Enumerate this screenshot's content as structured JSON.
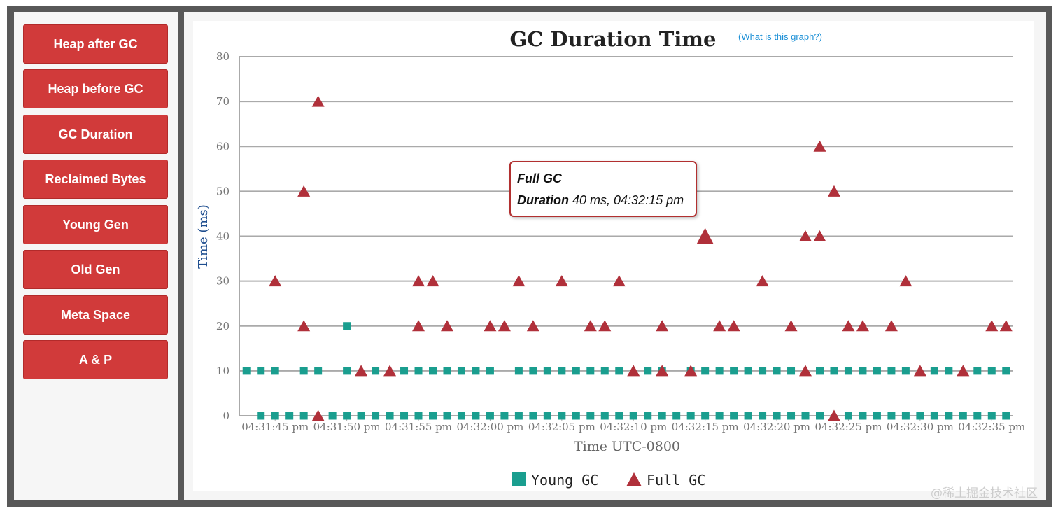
{
  "sidebar": {
    "buttons": [
      {
        "label": "Heap after GC"
      },
      {
        "label": "Heap before GC"
      },
      {
        "label": "GC Duration"
      },
      {
        "label": "Reclaimed Bytes"
      },
      {
        "label": "Young Gen"
      },
      {
        "label": "Old Gen"
      },
      {
        "label": "Meta Space"
      },
      {
        "label": "A & P"
      }
    ]
  },
  "help_link": "(What is this graph?)",
  "watermark": "@稀土掘金技术社区",
  "tooltip": {
    "title": "Full GC",
    "label": "Duration",
    "value": " 40 ms, 04:32:15 pm"
  },
  "colors": {
    "young_gc": "#1a9e8f",
    "full_gc": "#b0303a",
    "button": "#d13a3a"
  },
  "chart_data": {
    "type": "scatter",
    "title": "GC Duration Time",
    "xlabel": "Time UTC-0800",
    "ylabel": "Time (ms)",
    "ylim": [
      0,
      80
    ],
    "yticks": [
      0,
      10,
      20,
      30,
      40,
      50,
      60,
      70,
      80
    ],
    "xlim": [
      "04:31:42.5 pm",
      "04:32:36.5 pm"
    ],
    "xtick_labels": [
      "04:31:45 pm",
      "04:31:50 pm",
      "04:31:55 pm",
      "04:32:00 pm",
      "04:32:05 pm",
      "04:32:10 pm",
      "04:32:15 pm",
      "04:32:20 pm",
      "04:32:25 pm",
      "04:32:30 pm",
      "04:32:35 pm"
    ],
    "grid": true,
    "legend": "bottom",
    "highlighted_point": {
      "series": "Full GC",
      "x": "04:32:15 pm",
      "y": 40
    },
    "series": [
      {
        "name": "Young GC",
        "marker": "square",
        "points": [
          [
            "04:31:43 pm",
            10
          ],
          [
            "04:31:44 pm",
            10
          ],
          [
            "04:31:45 pm",
            10
          ],
          [
            "04:31:47 pm",
            10
          ],
          [
            "04:31:48 pm",
            10
          ],
          [
            "04:31:50 pm",
            20
          ],
          [
            "04:31:50 pm",
            10
          ],
          [
            "04:31:52 pm",
            10
          ],
          [
            "04:31:54 pm",
            10
          ],
          [
            "04:31:55 pm",
            10
          ],
          [
            "04:31:56 pm",
            10
          ],
          [
            "04:31:57 pm",
            10
          ],
          [
            "04:31:58 pm",
            10
          ],
          [
            "04:31:59 pm",
            10
          ],
          [
            "04:32:00 pm",
            10
          ],
          [
            "04:32:02 pm",
            10
          ],
          [
            "04:32:03 pm",
            10
          ],
          [
            "04:32:04 pm",
            10
          ],
          [
            "04:32:05 pm",
            10
          ],
          [
            "04:32:06 pm",
            10
          ],
          [
            "04:32:07 pm",
            10
          ],
          [
            "04:32:08 pm",
            10
          ],
          [
            "04:32:09 pm",
            10
          ],
          [
            "04:32:11 pm",
            10
          ],
          [
            "04:32:12 pm",
            10
          ],
          [
            "04:32:14 pm",
            10
          ],
          [
            "04:32:15 pm",
            10
          ],
          [
            "04:32:16 pm",
            10
          ],
          [
            "04:32:17 pm",
            10
          ],
          [
            "04:32:18 pm",
            10
          ],
          [
            "04:32:19 pm",
            10
          ],
          [
            "04:32:20 pm",
            10
          ],
          [
            "04:32:21 pm",
            10
          ],
          [
            "04:32:23 pm",
            10
          ],
          [
            "04:32:24 pm",
            10
          ],
          [
            "04:32:25 pm",
            10
          ],
          [
            "04:32:26 pm",
            10
          ],
          [
            "04:32:27 pm",
            10
          ],
          [
            "04:32:28 pm",
            10
          ],
          [
            "04:32:29 pm",
            10
          ],
          [
            "04:32:31 pm",
            10
          ],
          [
            "04:32:32 pm",
            10
          ],
          [
            "04:32:34 pm",
            10
          ],
          [
            "04:32:35 pm",
            10
          ],
          [
            "04:32:36 pm",
            10
          ],
          [
            "04:31:44 pm",
            0
          ],
          [
            "04:31:45 pm",
            0
          ],
          [
            "04:31:46 pm",
            0
          ],
          [
            "04:31:47 pm",
            0
          ],
          [
            "04:31:49 pm",
            0
          ],
          [
            "04:31:50 pm",
            0
          ],
          [
            "04:31:51 pm",
            0
          ],
          [
            "04:31:52 pm",
            0
          ],
          [
            "04:31:53 pm",
            0
          ],
          [
            "04:31:54 pm",
            0
          ],
          [
            "04:31:55 pm",
            0
          ],
          [
            "04:31:56 pm",
            0
          ],
          [
            "04:31:57 pm",
            0
          ],
          [
            "04:31:58 pm",
            0
          ],
          [
            "04:31:59 pm",
            0
          ],
          [
            "04:32:00 pm",
            0
          ],
          [
            "04:32:01 pm",
            0
          ],
          [
            "04:32:02 pm",
            0
          ],
          [
            "04:32:03 pm",
            0
          ],
          [
            "04:32:04 pm",
            0
          ],
          [
            "04:32:05 pm",
            0
          ],
          [
            "04:32:06 pm",
            0
          ],
          [
            "04:32:07 pm",
            0
          ],
          [
            "04:32:08 pm",
            0
          ],
          [
            "04:32:09 pm",
            0
          ],
          [
            "04:32:10 pm",
            0
          ],
          [
            "04:32:11 pm",
            0
          ],
          [
            "04:32:12 pm",
            0
          ],
          [
            "04:32:13 pm",
            0
          ],
          [
            "04:32:14 pm",
            0
          ],
          [
            "04:32:15 pm",
            0
          ],
          [
            "04:32:16 pm",
            0
          ],
          [
            "04:32:17 pm",
            0
          ],
          [
            "04:32:18 pm",
            0
          ],
          [
            "04:32:19 pm",
            0
          ],
          [
            "04:32:20 pm",
            0
          ],
          [
            "04:32:21 pm",
            0
          ],
          [
            "04:32:22 pm",
            0
          ],
          [
            "04:32:23 pm",
            0
          ],
          [
            "04:32:25 pm",
            0
          ],
          [
            "04:32:26 pm",
            0
          ],
          [
            "04:32:27 pm",
            0
          ],
          [
            "04:32:28 pm",
            0
          ],
          [
            "04:32:29 pm",
            0
          ],
          [
            "04:32:30 pm",
            0
          ],
          [
            "04:32:31 pm",
            0
          ],
          [
            "04:32:32 pm",
            0
          ],
          [
            "04:32:33 pm",
            0
          ],
          [
            "04:32:34 pm",
            0
          ],
          [
            "04:32:35 pm",
            0
          ],
          [
            "04:32:36 pm",
            0
          ]
        ]
      },
      {
        "name": "Full GC",
        "marker": "triangle",
        "points": [
          [
            "04:31:45 pm",
            30
          ],
          [
            "04:31:47 pm",
            50
          ],
          [
            "04:31:47 pm",
            20
          ],
          [
            "04:31:48 pm",
            70
          ],
          [
            "04:31:48 pm",
            0
          ],
          [
            "04:31:51 pm",
            10
          ],
          [
            "04:31:53 pm",
            10
          ],
          [
            "04:31:55 pm",
            30
          ],
          [
            "04:31:55 pm",
            20
          ],
          [
            "04:31:56 pm",
            30
          ],
          [
            "04:31:57 pm",
            20
          ],
          [
            "04:32:00 pm",
            20
          ],
          [
            "04:32:01 pm",
            20
          ],
          [
            "04:32:02 pm",
            30
          ],
          [
            "04:32:03 pm",
            20
          ],
          [
            "04:32:05 pm",
            30
          ],
          [
            "04:32:07 pm",
            20
          ],
          [
            "04:32:08 pm",
            20
          ],
          [
            "04:32:09 pm",
            30
          ],
          [
            "04:32:10 pm",
            10
          ],
          [
            "04:32:12 pm",
            20
          ],
          [
            "04:32:12 pm",
            10
          ],
          [
            "04:32:14 pm",
            10
          ],
          [
            "04:32:15 pm",
            40
          ],
          [
            "04:32:16 pm",
            20
          ],
          [
            "04:32:17 pm",
            20
          ],
          [
            "04:32:19 pm",
            30
          ],
          [
            "04:32:21 pm",
            20
          ],
          [
            "04:32:22 pm",
            40
          ],
          [
            "04:32:22 pm",
            10
          ],
          [
            "04:32:23 pm",
            60
          ],
          [
            "04:32:23 pm",
            40
          ],
          [
            "04:32:24 pm",
            50
          ],
          [
            "04:32:24 pm",
            0
          ],
          [
            "04:32:25 pm",
            20
          ],
          [
            "04:32:26 pm",
            20
          ],
          [
            "04:32:28 pm",
            20
          ],
          [
            "04:32:29 pm",
            30
          ],
          [
            "04:32:30 pm",
            10
          ],
          [
            "04:32:33 pm",
            10
          ],
          [
            "04:32:35 pm",
            20
          ],
          [
            "04:32:36 pm",
            20
          ]
        ]
      }
    ]
  }
}
